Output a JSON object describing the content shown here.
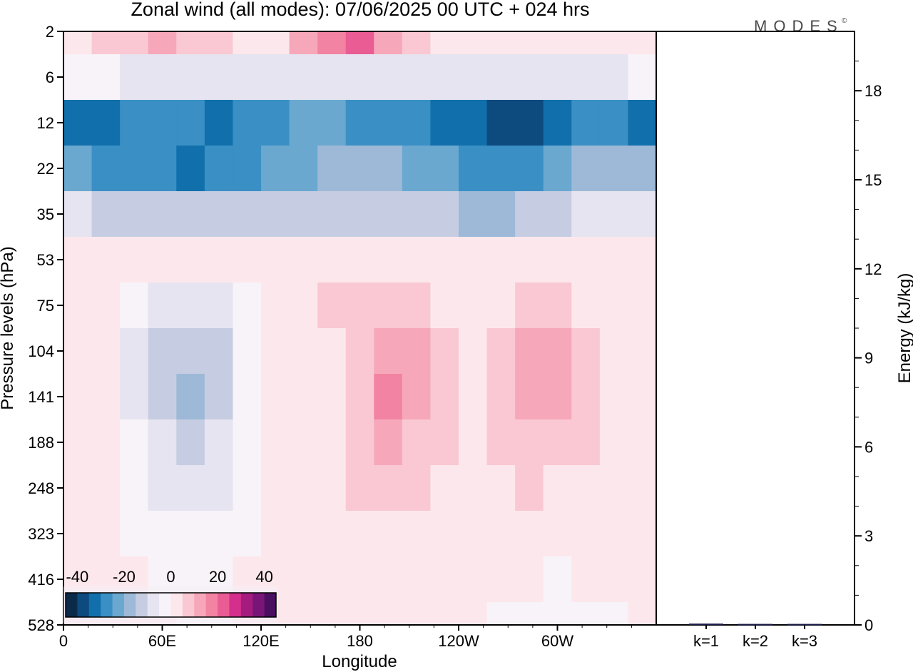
{
  "title": "Zonal wind (all modes):  07/06/2025  00 UTC  + 024 hrs",
  "logo": "MODES",
  "logo_mark": "©",
  "chart_data": [
    {
      "type": "heatmap",
      "title": "Zonal wind (all modes):  07/06/2025  00 UTC  + 024 hrs",
      "xlabel": "Longitude",
      "ylabel": "Pressure levels (hPa)",
      "x_ticks": [
        "0",
        "60E",
        "120E",
        "180",
        "120W",
        "60W"
      ],
      "x_tick_degrees": [
        0,
        60,
        120,
        180,
        240,
        300
      ],
      "xlim": [
        0,
        360
      ],
      "y_ticks": [
        "2",
        "6",
        "12",
        "22",
        "35",
        "53",
        "75",
        "104",
        "141",
        "188",
        "248",
        "323",
        "416",
        "528"
      ],
      "y_order": "top-to-bottom",
      "colorbar": {
        "labels": [
          "-40",
          "-20",
          "0",
          "20",
          "40"
        ],
        "range": [
          -45,
          45
        ],
        "colors": [
          "#0b2a4a",
          "#0d4a7e",
          "#1170ab",
          "#3a8fc4",
          "#6aa8d0",
          "#9eb9d8",
          "#c6cde2",
          "#e6e4f0",
          "#f8f3f8",
          "#fce8ec",
          "#f9c8d2",
          "#f6a8ba",
          "#f283a2",
          "#ea5c94",
          "#d42f8c",
          "#a51b7e",
          "#7a1578",
          "#4a0f60"
        ]
      },
      "zonal_wind_field": [
        {
          "level": "2",
          "values": [
            0,
            5,
            8,
            12,
            8,
            5,
            0,
            4,
            10,
            16,
            20,
            14,
            8,
            4,
            0,
            2,
            4,
            2,
            0,
            0,
            0
          ]
        },
        {
          "level": "6",
          "values": [
            -2,
            -4,
            -6,
            -6,
            -6,
            -6,
            -6,
            -6,
            -6,
            -6,
            -6,
            -6,
            -6,
            -6,
            -6,
            -6,
            -6,
            -6,
            -6,
            -6,
            -2
          ]
        },
        {
          "level": "12",
          "values": [
            -32,
            -34,
            -30,
            -30,
            -30,
            -32,
            -28,
            -26,
            -24,
            -22,
            -26,
            -28,
            -30,
            -32,
            -34,
            -38,
            -36,
            -34,
            -30,
            -30,
            -32
          ]
        },
        {
          "level": "22",
          "values": [
            -24,
            -26,
            -28,
            -30,
            -32,
            -30,
            -28,
            -24,
            -22,
            -20,
            -20,
            -20,
            -22,
            -24,
            -28,
            -30,
            -28,
            -24,
            -20,
            -18,
            -20
          ]
        },
        {
          "level": "35",
          "values": [
            -10,
            -12,
            -14,
            -14,
            -14,
            -14,
            -14,
            -12,
            -12,
            -12,
            -12,
            -12,
            -14,
            -14,
            -16,
            -16,
            -14,
            -12,
            -10,
            -10,
            -10
          ]
        },
        {
          "level": "53",
          "values": [
            0,
            0,
            2,
            2,
            2,
            0,
            0,
            2,
            2,
            4,
            4,
            4,
            2,
            2,
            2,
            4,
            4,
            4,
            2,
            2,
            0
          ]
        },
        {
          "level": "75",
          "values": [
            0,
            0,
            -4,
            -8,
            -8,
            -6,
            -2,
            2,
            4,
            6,
            6,
            8,
            6,
            4,
            2,
            4,
            6,
            6,
            4,
            2,
            0
          ]
        },
        {
          "level": "104",
          "values": [
            2,
            0,
            -6,
            -12,
            -14,
            -12,
            -4,
            0,
            2,
            4,
            8,
            14,
            10,
            6,
            4,
            8,
            12,
            10,
            6,
            4,
            2
          ]
        },
        {
          "level": "141",
          "values": [
            2,
            0,
            -6,
            -14,
            -16,
            -12,
            -4,
            0,
            2,
            4,
            8,
            16,
            12,
            8,
            4,
            8,
            12,
            10,
            8,
            4,
            2
          ]
        },
        {
          "level": "188",
          "values": [
            2,
            0,
            -4,
            -10,
            -12,
            -8,
            -4,
            0,
            2,
            4,
            8,
            12,
            8,
            6,
            4,
            6,
            8,
            8,
            6,
            4,
            2
          ]
        },
        {
          "level": "248",
          "values": [
            2,
            0,
            -2,
            -6,
            -6,
            -6,
            -4,
            0,
            2,
            4,
            6,
            8,
            6,
            4,
            2,
            4,
            6,
            4,
            4,
            2,
            2
          ]
        },
        {
          "level": "323",
          "values": [
            0,
            0,
            -2,
            -4,
            -4,
            -2,
            -2,
            0,
            2,
            2,
            4,
            4,
            2,
            2,
            0,
            2,
            2,
            2,
            0,
            0,
            0
          ]
        },
        {
          "level": "416",
          "values": [
            0,
            0,
            0,
            -2,
            -2,
            -2,
            0,
            0,
            0,
            2,
            2,
            2,
            0,
            0,
            0,
            0,
            0,
            -2,
            0,
            0,
            0
          ]
        },
        {
          "level": "528",
          "values": [
            0,
            0,
            0,
            0,
            -2,
            -2,
            0,
            0,
            0,
            0,
            0,
            2,
            0,
            0,
            0,
            -2,
            -2,
            -2,
            -2,
            -2,
            0
          ]
        }
      ]
    },
    {
      "type": "bar",
      "xlabel": "",
      "ylabel": "Energy (kJ/kg)",
      "categories": [
        "k=1",
        "k=2",
        "k=3"
      ],
      "values": [
        0.02,
        0.01,
        0.01
      ],
      "ylim": [
        0,
        20
      ],
      "y_ticks": [
        "0",
        "3",
        "6",
        "9",
        "12",
        "15",
        "18"
      ],
      "y_axis_side": "right"
    }
  ]
}
